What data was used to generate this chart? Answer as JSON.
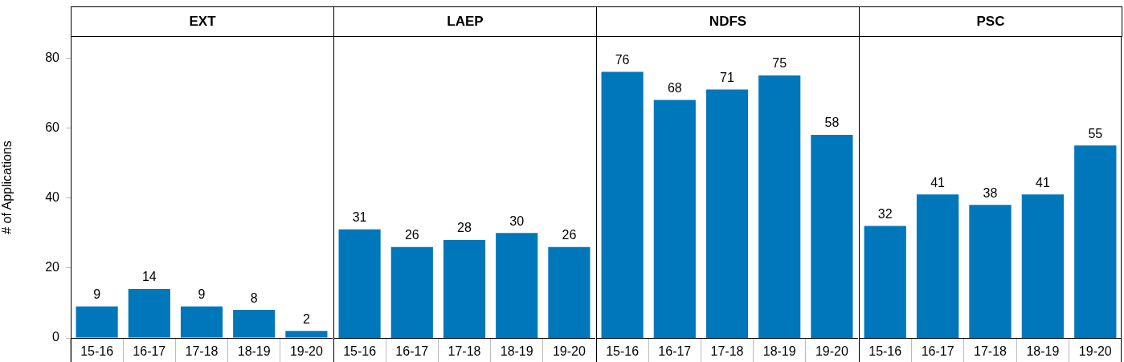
{
  "chart_data": [
    {
      "type": "bar",
      "title": "EXT",
      "ylabel": "# of Applications",
      "categories": [
        "15-16",
        "16-17",
        "17-18",
        "18-19",
        "19-20"
      ],
      "values": [
        9,
        14,
        9,
        8,
        2
      ],
      "color": "#0077bb",
      "ylim": [
        0,
        86
      ],
      "yticks": [
        0,
        20,
        40,
        60,
        80
      ],
      "data_labels": true,
      "grid": false
    },
    {
      "type": "bar",
      "title": "LAEP",
      "categories": [
        "15-16",
        "16-17",
        "17-18",
        "18-19",
        "19-20"
      ],
      "values": [
        31,
        26,
        28,
        30,
        26
      ],
      "color": "#0077bb",
      "ylim": [
        0,
        86
      ],
      "yticks": [
        0,
        20,
        40,
        60,
        80
      ],
      "data_labels": true,
      "grid": false,
      "tick_labels": "x"
    },
    {
      "type": "bar",
      "title": "NDFS",
      "categories": [
        "15-16",
        "16-17",
        "17-18",
        "18-19",
        "19-20"
      ],
      "values": [
        76,
        68,
        71,
        75,
        58
      ],
      "color": "#0077bb",
      "ylim": [
        0,
        86
      ],
      "yticks": [
        0,
        20,
        40,
        60,
        80
      ],
      "data_labels": true,
      "grid": false,
      "tick_labels": "x"
    },
    {
      "type": "bar",
      "title": "PSC",
      "categories": [
        "15-16",
        "16-17",
        "17-18",
        "18-19",
        "19-20"
      ],
      "values": [
        32,
        41,
        38,
        41,
        55
      ],
      "color": "#0077bb",
      "ylim": [
        0,
        86
      ],
      "yticks": [
        0,
        20,
        40,
        60,
        80
      ],
      "data_labels": true,
      "grid": false,
      "tick_labels": "x"
    }
  ]
}
